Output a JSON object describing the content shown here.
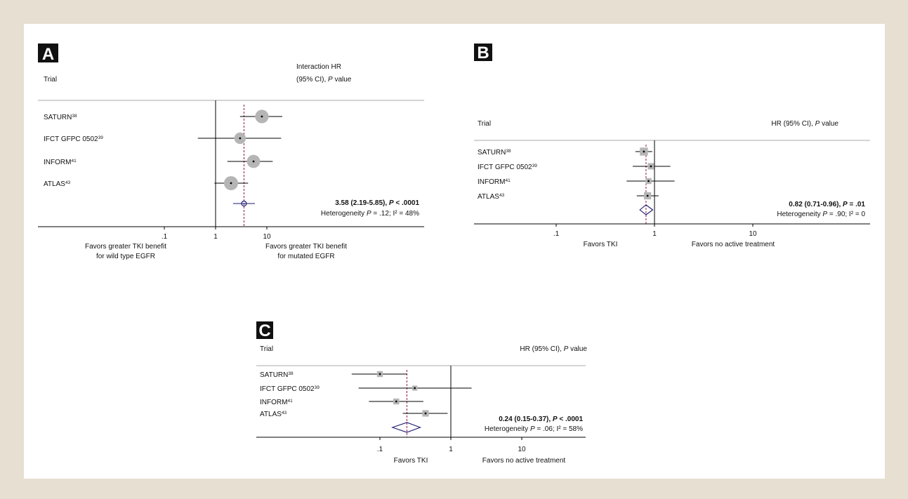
{
  "colors": {
    "background": "#e6dfd2",
    "panel": "#ffffff",
    "marker": "#b5b5b5",
    "pooled_reference_line": "#8b1a4a",
    "diamond": "#1a1a6e",
    "letter_badge": "#111111"
  },
  "chart_data": [
    {
      "type": "forest",
      "panel_label": "A",
      "x_scale": "log",
      "xlim": [
        0.01,
        100
      ],
      "xticks": [
        ".1",
        "1",
        "10"
      ],
      "xtick_values": [
        0.1,
        1,
        10
      ],
      "col_trial_header": "Trial",
      "col_estimate_header_line1": "Interaction HR",
      "col_estimate_header_line2": "(95% CI), P value",
      "favors_left_line1": "Favors greater TKI benefit",
      "favors_left_line2": "for wild type EGFR",
      "favors_right_line1": "Favors greater TKI benefit",
      "favors_right_line2": "for mutated EGFR",
      "studies": [
        {
          "trial": "SATURN",
          "ref": "38",
          "hr": 8.0,
          "lower": 3.0,
          "upper": 20.0,
          "weight": 0.9
        },
        {
          "trial": "IFCT GFPC 0502",
          "ref": "39",
          "hr": 3.0,
          "lower": 0.45,
          "upper": 19.0,
          "weight": 0.55
        },
        {
          "trial": "INFORM",
          "ref": "41",
          "hr": 5.5,
          "lower": 1.7,
          "upper": 13.0,
          "weight": 0.85
        },
        {
          "trial": "ATLAS",
          "ref": "43",
          "hr": 2.0,
          "lower": 0.95,
          "upper": 4.3,
          "weight": 1.0
        }
      ],
      "pooled": {
        "hr": 3.58,
        "lower": 2.19,
        "upper": 5.85,
        "shape": "circle"
      },
      "pooled_text": "3.58 (2.19-5.85), P < .0001",
      "heterogeneity_text": "Heterogeneity P = .12; I² = 48%"
    },
    {
      "type": "forest",
      "panel_label": "B",
      "x_scale": "log",
      "xlim": [
        0.01,
        100
      ],
      "xticks": [
        ".1",
        "1",
        "10"
      ],
      "xtick_values": [
        0.1,
        1,
        10
      ],
      "col_trial_header": "Trial",
      "col_estimate_header": "HR (95% CI), P value",
      "favors_left_line1": "Favors TKI",
      "favors_right_line1": "Favors no active treatment",
      "studies": [
        {
          "trial": "SATURN",
          "ref": "38",
          "hr": 0.78,
          "lower": 0.64,
          "upper": 0.95,
          "weight": 0.9
        },
        {
          "trial": "IFCT GFPC 0502",
          "ref": "39",
          "hr": 0.92,
          "lower": 0.6,
          "upper": 1.45,
          "weight": 0.5
        },
        {
          "trial": "INFORM",
          "ref": "41",
          "hr": 0.87,
          "lower": 0.52,
          "upper": 1.6,
          "weight": 0.4
        },
        {
          "trial": "ATLAS",
          "ref": "43",
          "hr": 0.85,
          "lower": 0.66,
          "upper": 1.1,
          "weight": 0.7
        }
      ],
      "pooled": {
        "hr": 0.82,
        "lower": 0.71,
        "upper": 0.96,
        "shape": "diamond"
      },
      "pooled_text": "0.82 (0.71-0.96), P = .01",
      "heterogeneity_text": "Heterogeneity P = .90; I² = 0"
    },
    {
      "type": "forest",
      "panel_label": "C",
      "x_scale": "log",
      "xlim": [
        0.01,
        100
      ],
      "xticks": [
        ".1",
        "1",
        "10"
      ],
      "xtick_values": [
        0.1,
        1,
        10
      ],
      "col_trial_header": "Trial",
      "col_estimate_header": "HR (95% CI), P value",
      "favors_left_line1": "Favors TKI",
      "favors_right_line1": "Favors no active treatment",
      "studies": [
        {
          "trial": "SATURN",
          "ref": "38",
          "hr": 0.1,
          "lower": 0.04,
          "upper": 0.24,
          "weight": 0.6
        },
        {
          "trial": "IFCT GFPC 0502",
          "ref": "39",
          "hr": 0.31,
          "lower": 0.05,
          "upper": 1.96,
          "weight": 0.3
        },
        {
          "trial": "INFORM",
          "ref": "41",
          "hr": 0.17,
          "lower": 0.07,
          "upper": 0.41,
          "weight": 0.6
        },
        {
          "trial": "ATLAS",
          "ref": "43",
          "hr": 0.44,
          "lower": 0.21,
          "upper": 0.9,
          "weight": 0.8
        }
      ],
      "pooled": {
        "hr": 0.24,
        "lower": 0.15,
        "upper": 0.37,
        "shape": "diamond"
      },
      "pooled_text": "0.24 (0.15-0.37), P < .0001",
      "heterogeneity_text": "Heterogeneity P = .06; I² = 58%"
    }
  ]
}
